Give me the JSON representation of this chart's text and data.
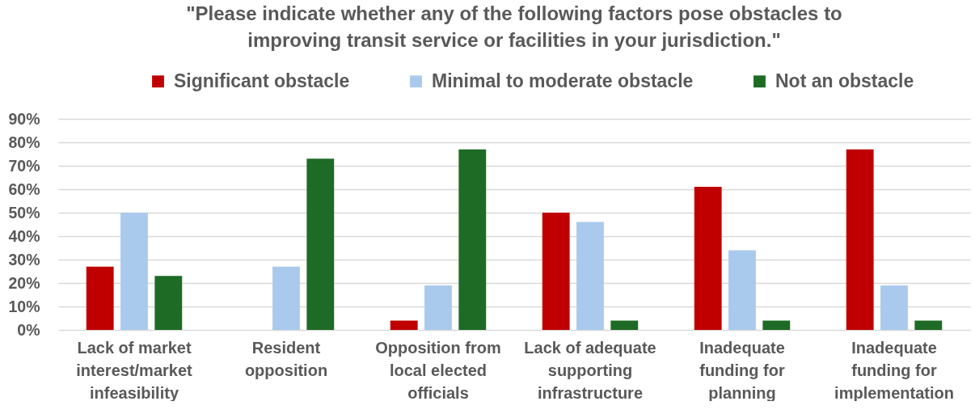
{
  "chart_data": {
    "type": "bar",
    "title": "\"Please indicate whether any of the following factors pose obstacles to improving transit service or facilities in your jurisdiction.\"",
    "categories": [
      "Lack of market interest/market infeasibility",
      "Resident opposition",
      "Opposition from local elected officials",
      "Lack of adequate supporting infrastructure",
      "Inadequate funding for planning",
      "Inadequate funding for implementation"
    ],
    "series": [
      {
        "name": "Significant obstacle",
        "color": "#c00000",
        "values": [
          27,
          0,
          4,
          50,
          61,
          77
        ]
      },
      {
        "name": "Minimal to moderate obstacle",
        "color": "#a9caec",
        "values": [
          50,
          27,
          19,
          46,
          34,
          19
        ]
      },
      {
        "name": "Not an obstacle",
        "color": "#1d6b24",
        "values": [
          23,
          73,
          77,
          4,
          4,
          4
        ]
      }
    ],
    "ylim": [
      0,
      90
    ],
    "yticks": [
      {
        "value": 0,
        "label": "0%"
      },
      {
        "value": 10,
        "label": "10%"
      },
      {
        "value": 20,
        "label": "20%"
      },
      {
        "value": 30,
        "label": "30%"
      },
      {
        "value": 40,
        "label": "40%"
      },
      {
        "value": 50,
        "label": "50%"
      },
      {
        "value": 60,
        "label": "60%"
      },
      {
        "value": 70,
        "label": "70%"
      },
      {
        "value": 80,
        "label": "80%"
      },
      {
        "value": 90,
        "label": "90%"
      }
    ],
    "grid": "y",
    "legend": "top"
  }
}
